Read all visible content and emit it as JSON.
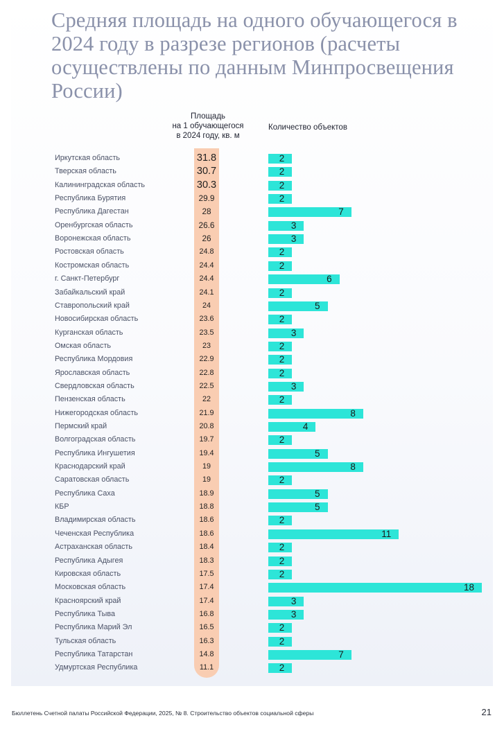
{
  "title": "Средняя площадь на одного обучающегося в 2024 году в разрезе регионов (расчеты осуществлены по данным Минпросвещения России)",
  "column_headers": {
    "area_line1": "Площадь",
    "area_line2": "на  1 обучающегося",
    "area_line3": "в 2024 году, кв. м",
    "count": "Количество объектов"
  },
  "colors": {
    "area_marker": "#f9cdb2",
    "count_bar": "#2de5d8",
    "title": "#8a91aa"
  },
  "chart_data": {
    "type": "bar",
    "title": "Средняя площадь на одного обучающегося в 2024 году в разрезе регионов (расчеты осуществлены по данным Минпросвещения России)",
    "categories": [
      "Иркутская область",
      "Тверская область",
      "Калининградская область",
      "Республика Бурятия",
      "Республика Дагестан",
      "Оренбургская область",
      "Воронежская область",
      "Ростовская область",
      "Костромская область",
      "г. Санкт-Петербург",
      "Забайкальский край",
      "Ставропольский край",
      "Новосибирская область",
      "Курганская область",
      "Омская область",
      "Республика Мордовия",
      "Ярославская область",
      "Свердловская область",
      "Пензенская область",
      "Нижегородская область",
      "Пермский край",
      "Волгоградская область",
      "Республика Ингушетия",
      "Краснодарский край",
      "Саратовская область",
      "Республика Саха",
      "КБР",
      "Владимирская область",
      "Чеченская Республика",
      "Астраханская область",
      "Республика Адыгея",
      "Кировская область",
      "Московская область",
      "Красноярский край",
      "Республика Тыва",
      "Республика Марий Эл",
      "Тульская область",
      "Республика Татарстан",
      "Удмуртская Республика"
    ],
    "series": [
      {
        "name": "Площадь на  1 обучающегося в 2024 году, кв. м",
        "values": [
          "31.8",
          "30.7",
          "30.3",
          "29.9",
          "28",
          "26.6",
          "26",
          "24.8",
          "24.4",
          "24.4",
          "24.1",
          "24",
          "23.6",
          "23.5",
          "23",
          "22.9",
          "22.8",
          "22.5",
          "22",
          "21.9",
          "20.8",
          "19.7",
          "19.4",
          "19",
          "19",
          "18.9",
          "18.8",
          "18.6",
          "18.6",
          "18.4",
          "18.3",
          "17.5",
          "17.4",
          "17.4",
          "16.8",
          "16.5",
          "16.3",
          "14.8",
          "11.1"
        ]
      },
      {
        "name": "Количество объектов",
        "values": [
          "2",
          "2",
          "2",
          "2",
          "7",
          "3",
          "3",
          "2",
          "2",
          "6",
          "2",
          "5",
          "2",
          "3",
          "2",
          "2",
          "2",
          "3",
          "2",
          "8",
          "4",
          "2",
          "5",
          "8",
          "2",
          "5",
          "5",
          "2",
          "11",
          "2",
          "2",
          "2",
          "18",
          "3",
          "3",
          "2",
          "2",
          "7",
          "2"
        ]
      }
    ],
    "xmax": 18
  },
  "footer": {
    "source": "Бюллетень Счетной палаты Российской Федерации, 2025, № 8. Строительство объектов социальной сферы",
    "page_number": "21"
  }
}
